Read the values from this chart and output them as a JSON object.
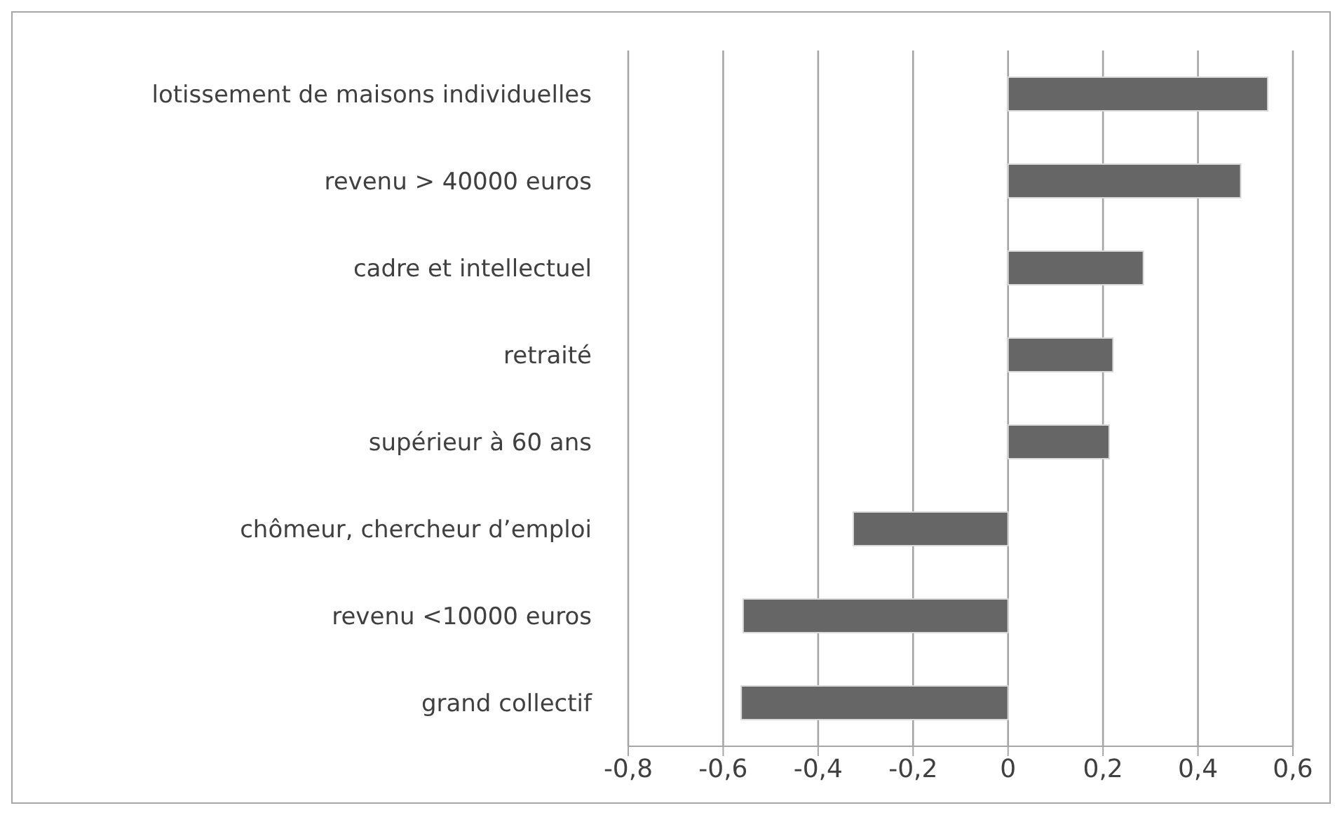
{
  "chart_data": {
    "type": "bar",
    "orientation": "horizontal",
    "categories": [
      "lotissement de maisons individuelles",
      "revenu > 40000 euros",
      "cadre et intellectuel",
      "retraité",
      "supérieur à 60 ans",
      "chômeur, chercheur d’emploi",
      "revenu <10000 euros",
      "grand collectif"
    ],
    "values": [
      0.547,
      0.49,
      0.285,
      0.221,
      0.213,
      -0.326,
      -0.558,
      -0.562
    ],
    "color": "#666666",
    "xlim": [
      -0.8,
      0.6
    ],
    "xticks": [
      {
        "value": -0.8,
        "label": "-0,8"
      },
      {
        "value": -0.6,
        "label": "-0,6"
      },
      {
        "value": -0.4,
        "label": "-0,4"
      },
      {
        "value": -0.2,
        "label": "-0,2"
      },
      0,
      {
        "value": 0.2,
        "label": "0,2"
      },
      {
        "value": 0.4,
        "label": "0,4"
      },
      {
        "value": 0.6,
        "label": "0,6"
      }
    ],
    "grid": "x"
  }
}
